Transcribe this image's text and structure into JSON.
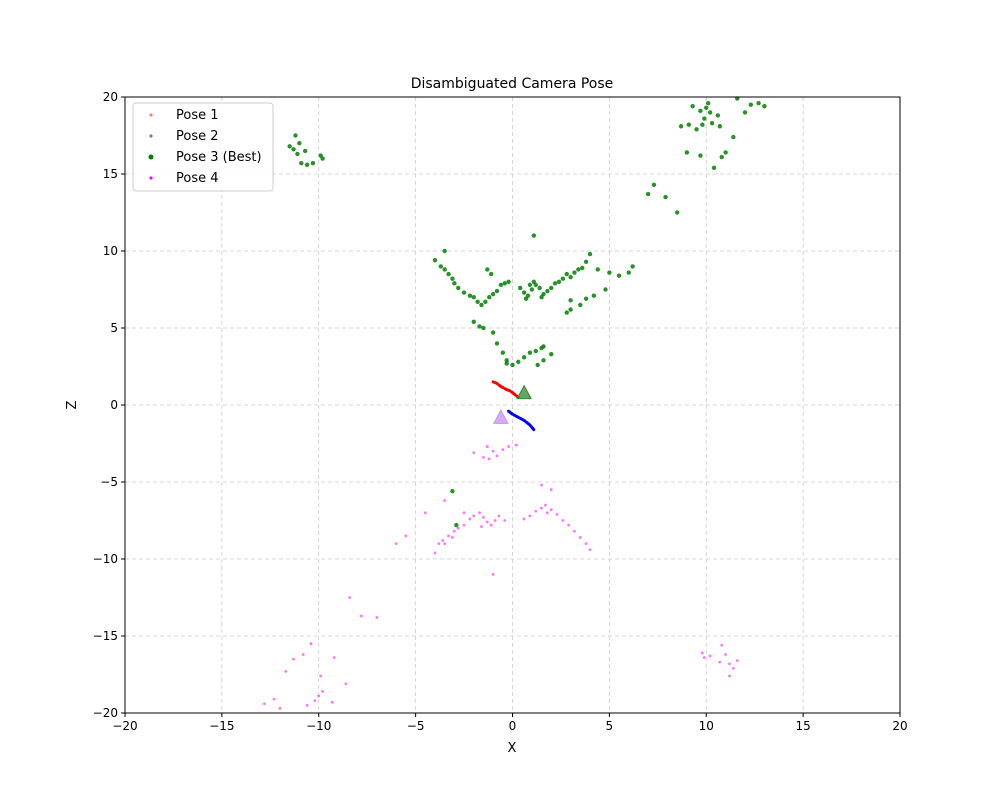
{
  "chart_data": {
    "type": "scatter",
    "title": "Disambiguated Camera Pose",
    "xlabel": "X",
    "ylabel": "Z",
    "xlim": [
      -20,
      20
    ],
    "ylim": [
      -20,
      20
    ],
    "x_ticks": [
      -20,
      -15,
      -10,
      -5,
      0,
      5,
      10,
      15,
      20
    ],
    "y_ticks": [
      -20,
      -15,
      -10,
      -5,
      0,
      5,
      10,
      15,
      20
    ],
    "x_tick_labels": [
      "−20",
      "−15",
      "−10",
      "−5",
      "0",
      "5",
      "10",
      "15",
      "20"
    ],
    "y_tick_labels": [
      "−20",
      "−15",
      "−10",
      "−5",
      "0",
      "5",
      "10",
      "15",
      "20"
    ],
    "grid": true,
    "legend_position": "top-left",
    "series": [
      {
        "name": "Pose 1",
        "color": "#ff8080",
        "points": []
      },
      {
        "name": "Pose 2",
        "color": "#808080",
        "points": []
      },
      {
        "name": "Pose 3 (Best)",
        "color": "#008000",
        "points": [
          [
            -11.2,
            17.5
          ],
          [
            -11.0,
            17.0
          ],
          [
            -11.3,
            16.6
          ],
          [
            -11.1,
            16.3
          ],
          [
            -10.9,
            15.7
          ],
          [
            -10.6,
            15.6
          ],
          [
            -10.3,
            15.7
          ],
          [
            -9.9,
            16.2
          ],
          [
            -9.8,
            16.0
          ],
          [
            -11.5,
            16.8
          ],
          [
            -10.7,
            16.5
          ],
          [
            9.3,
            19.4
          ],
          [
            9.7,
            19.1
          ],
          [
            10.0,
            19.3
          ],
          [
            10.2,
            19.0
          ],
          [
            10.6,
            18.8
          ],
          [
            9.9,
            18.6
          ],
          [
            9.8,
            18.2
          ],
          [
            10.3,
            18.3
          ],
          [
            9.5,
            17.9
          ],
          [
            9.1,
            18.2
          ],
          [
            8.7,
            18.1
          ],
          [
            10.7,
            18.1
          ],
          [
            11.4,
            17.4
          ],
          [
            11.0,
            16.4
          ],
          [
            10.8,
            16.1
          ],
          [
            10.4,
            15.4
          ],
          [
            9.7,
            16.2
          ],
          [
            9.0,
            16.4
          ],
          [
            12.0,
            19.0
          ],
          [
            12.3,
            19.5
          ],
          [
            12.7,
            19.6
          ],
          [
            13.0,
            19.4
          ],
          [
            11.6,
            19.9
          ],
          [
            10.1,
            19.6
          ],
          [
            7.3,
            14.3
          ],
          [
            7.0,
            13.7
          ],
          [
            7.9,
            13.5
          ],
          [
            8.5,
            12.5
          ],
          [
            -4.0,
            9.4
          ],
          [
            -3.7,
            9.0
          ],
          [
            -3.5,
            8.8
          ],
          [
            -3.3,
            8.5
          ],
          [
            -3.1,
            8.2
          ],
          [
            -3.0,
            7.9
          ],
          [
            -2.8,
            7.6
          ],
          [
            -2.5,
            7.3
          ],
          [
            -2.2,
            7.1
          ],
          [
            -2.0,
            7.0
          ],
          [
            -1.8,
            6.7
          ],
          [
            -1.6,
            6.5
          ],
          [
            -1.4,
            6.7
          ],
          [
            -1.2,
            7.0
          ],
          [
            -1.0,
            7.2
          ],
          [
            -0.8,
            7.4
          ],
          [
            -0.6,
            7.8
          ],
          [
            -0.4,
            7.9
          ],
          [
            -0.2,
            8.0
          ],
          [
            -1.3,
            8.8
          ],
          [
            -1.1,
            8.5
          ],
          [
            -3.5,
            10.0
          ],
          [
            0.4,
            7.6
          ],
          [
            0.6,
            7.3
          ],
          [
            0.8,
            7.1
          ],
          [
            1.0,
            7.5
          ],
          [
            1.2,
            7.8
          ],
          [
            1.4,
            7.6
          ],
          [
            1.6,
            7.2
          ],
          [
            1.8,
            7.4
          ],
          [
            2.0,
            7.6
          ],
          [
            2.2,
            7.9
          ],
          [
            2.4,
            8.0
          ],
          [
            1.1,
            8.0
          ],
          [
            0.9,
            7.8
          ],
          [
            1.5,
            7.0
          ],
          [
            0.7,
            6.9
          ],
          [
            1.1,
            11.0
          ],
          [
            2.6,
            8.2
          ],
          [
            2.8,
            8.5
          ],
          [
            3.0,
            8.3
          ],
          [
            3.2,
            8.6
          ],
          [
            3.4,
            8.8
          ],
          [
            3.6,
            8.9
          ],
          [
            3.8,
            9.3
          ],
          [
            4.0,
            9.8
          ],
          [
            4.4,
            8.8
          ],
          [
            5.0,
            8.6
          ],
          [
            5.5,
            8.4
          ],
          [
            6.0,
            8.6
          ],
          [
            6.2,
            9.0
          ],
          [
            4.8,
            7.5
          ],
          [
            4.2,
            7.1
          ],
          [
            3.8,
            6.9
          ],
          [
            3.5,
            6.5
          ],
          [
            3.0,
            6.2
          ],
          [
            2.8,
            6.0
          ],
          [
            3.0,
            6.8
          ],
          [
            -2.0,
            5.4
          ],
          [
            -1.5,
            5.0
          ],
          [
            -1.0,
            4.7
          ],
          [
            -0.8,
            4.0
          ],
          [
            -0.5,
            3.4
          ],
          [
            -0.3,
            2.9
          ],
          [
            0.0,
            2.6
          ],
          [
            0.3,
            2.8
          ],
          [
            0.6,
            3.1
          ],
          [
            0.9,
            3.4
          ],
          [
            1.2,
            3.5
          ],
          [
            1.5,
            3.7
          ],
          [
            1.6,
            3.8
          ],
          [
            2.0,
            3.3
          ],
          [
            1.6,
            2.9
          ],
          [
            1.3,
            2.6
          ],
          [
            -0.3,
            2.7
          ],
          [
            -1.7,
            5.1
          ],
          [
            -3.1,
            -5.6
          ],
          [
            -2.9,
            -7.8
          ]
        ]
      },
      {
        "name": "Pose 4",
        "color": "#ff00ff",
        "points": [
          [
            -1.3,
            -2.7
          ],
          [
            -1.0,
            -3.0
          ],
          [
            -0.5,
            -2.9
          ],
          [
            -0.2,
            -2.7
          ],
          [
            0.2,
            -2.6
          ],
          [
            -1.5,
            -3.4
          ],
          [
            -1.2,
            -3.5
          ],
          [
            -0.8,
            -3.3
          ],
          [
            -4.0,
            -9.6
          ],
          [
            -3.8,
            -9.0
          ],
          [
            -3.6,
            -8.8
          ],
          [
            -3.3,
            -8.5
          ],
          [
            -3.0,
            -8.2
          ],
          [
            -2.8,
            -8.0
          ],
          [
            -2.5,
            -7.8
          ],
          [
            -2.2,
            -7.4
          ],
          [
            -2.0,
            -7.2
          ],
          [
            -1.7,
            -7.0
          ],
          [
            -1.5,
            -7.3
          ],
          [
            -1.3,
            -7.6
          ],
          [
            -1.1,
            -7.8
          ],
          [
            -0.9,
            -7.5
          ],
          [
            -0.7,
            -7.2
          ],
          [
            -0.4,
            -7.5
          ],
          [
            -1.6,
            -7.9
          ],
          [
            -3.5,
            -9.0
          ],
          [
            -3.1,
            -8.6
          ],
          [
            0.6,
            -7.4
          ],
          [
            0.9,
            -7.2
          ],
          [
            1.2,
            -6.9
          ],
          [
            1.5,
            -6.7
          ],
          [
            1.7,
            -6.5
          ],
          [
            2.0,
            -6.8
          ],
          [
            2.3,
            -7.1
          ],
          [
            2.6,
            -7.5
          ],
          [
            2.9,
            -7.8
          ],
          [
            3.2,
            -8.2
          ],
          [
            3.5,
            -8.6
          ],
          [
            3.8,
            -9.0
          ],
          [
            4.0,
            -9.4
          ],
          [
            1.8,
            -7.0
          ],
          [
            -5.5,
            -8.5
          ],
          [
            -6.0,
            -9.0
          ],
          [
            -4.5,
            -7.0
          ],
          [
            -3.5,
            -6.2
          ],
          [
            -2.5,
            -7.0
          ],
          [
            -1.0,
            -11.0
          ],
          [
            1.5,
            -5.2
          ],
          [
            2.0,
            -5.5
          ],
          [
            -2.0,
            -3.1
          ],
          [
            -12.8,
            -19.4
          ],
          [
            -12.3,
            -19.1
          ],
          [
            -11.7,
            -17.3
          ],
          [
            -11.3,
            -16.5
          ],
          [
            -10.8,
            -16.2
          ],
          [
            -10.4,
            -15.5
          ],
          [
            -10.0,
            -18.9
          ],
          [
            -10.2,
            -19.2
          ],
          [
            -9.8,
            -18.6
          ],
          [
            -10.6,
            -19.5
          ],
          [
            -9.3,
            -19.3
          ],
          [
            -9.2,
            -16.4
          ],
          [
            -8.6,
            -18.1
          ],
          [
            -8.4,
            -12.5
          ],
          [
            -7.8,
            -13.7
          ],
          [
            -7.0,
            -13.8
          ],
          [
            -9.9,
            -17.6
          ],
          [
            -12.0,
            -19.7
          ],
          [
            9.8,
            -16.1
          ],
          [
            10.2,
            -16.3
          ],
          [
            10.8,
            -15.6
          ],
          [
            11.0,
            -16.2
          ],
          [
            11.2,
            -16.8
          ],
          [
            11.4,
            -17.1
          ],
          [
            11.2,
            -17.6
          ],
          [
            10.7,
            -16.7
          ],
          [
            11.6,
            -16.6
          ],
          [
            9.9,
            -16.4
          ]
        ]
      }
    ],
    "camera_paths": [
      {
        "name": "red",
        "color": "#ff0000",
        "points": [
          [
            -1.0,
            1.5
          ],
          [
            -0.8,
            1.4
          ],
          [
            -0.6,
            1.2
          ],
          [
            -0.3,
            1.0
          ],
          [
            -0.1,
            0.9
          ],
          [
            0.1,
            0.7
          ],
          [
            0.3,
            0.5
          ]
        ]
      },
      {
        "name": "blue",
        "color": "#0000ff",
        "points": [
          [
            -0.2,
            -0.4
          ],
          [
            0.0,
            -0.6
          ],
          [
            0.3,
            -0.8
          ],
          [
            0.6,
            -1.0
          ],
          [
            0.9,
            -1.3
          ],
          [
            1.1,
            -1.6
          ]
        ]
      }
    ],
    "camera_markers": [
      {
        "name": "pose3-camera",
        "color": "#2e8b2e",
        "x": 0.6,
        "y": 0.8
      },
      {
        "name": "pose4-camera",
        "color": "#c890f0",
        "x": -0.6,
        "y": -0.8
      }
    ]
  }
}
